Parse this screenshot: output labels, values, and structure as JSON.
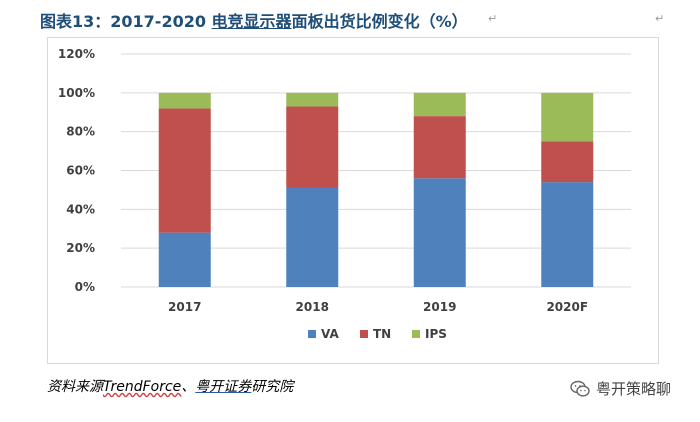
{
  "header": {
    "title_prefix": "图表13：2017-2020 ",
    "title_underlined": "电竞显示器",
    "title_suffix": "面板出货比例变化（%）",
    "return_mark": "↵"
  },
  "source": {
    "prefix": "资料来源",
    "brand": "TrendForce",
    "sep": "、",
    "org_underlined": "粤开证券",
    "org_rest": "研究院"
  },
  "watermark": {
    "text": "粤开策略聊",
    "icon": "wechat-icon"
  },
  "colors": {
    "VA": "#4f81bd",
    "TN": "#c0504d",
    "IPS": "#9bbb59",
    "title": "#1f4e79",
    "grid": "#d9d9d9"
  },
  "chart_data": {
    "type": "bar",
    "stacked": true,
    "title": "2017-2020 电竞显示器面板出货比例变化（%）",
    "categories": [
      "2017",
      "2018",
      "2019",
      "2020F"
    ],
    "series": [
      {
        "name": "VA",
        "values": [
          28,
          51,
          56,
          54
        ]
      },
      {
        "name": "TN",
        "values": [
          64,
          42,
          32,
          21
        ]
      },
      {
        "name": "IPS",
        "values": [
          8,
          7,
          12,
          25
        ]
      }
    ],
    "ylim": [
      0,
      120
    ],
    "yticks": [
      "0%",
      "20%",
      "40%",
      "60%",
      "80%",
      "100%",
      "120%"
    ],
    "ytick_values": [
      0,
      20,
      40,
      60,
      80,
      100,
      120
    ],
    "xlabel": "",
    "ylabel": "",
    "legend": [
      "VA",
      "TN",
      "IPS"
    ],
    "legend_position": "bottom",
    "grid": true
  }
}
